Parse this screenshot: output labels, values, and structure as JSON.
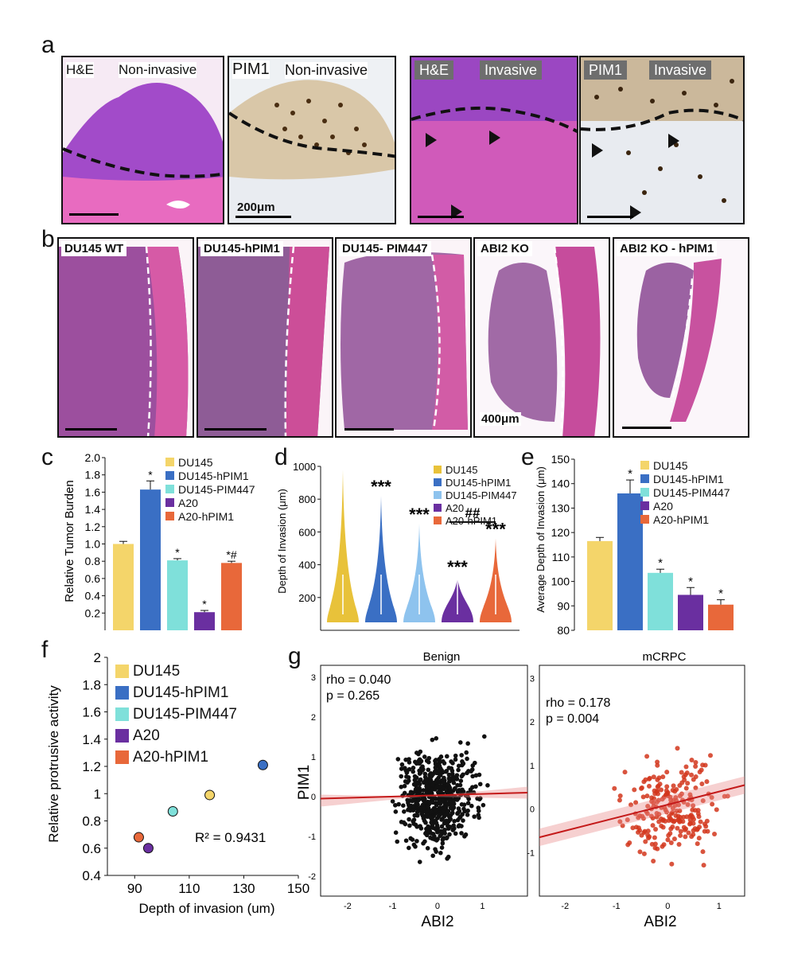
{
  "panels": {
    "a": {
      "letter": "a",
      "images": [
        {
          "stain": "H&E",
          "state": "Non-invasive"
        },
        {
          "stain": "PIM1",
          "state": "Non-invasive",
          "scale": "200μm"
        },
        {
          "stain": "H&E",
          "state": "Invasive"
        },
        {
          "stain": "PIM1",
          "state": "Invasive"
        }
      ]
    },
    "b": {
      "letter": "b",
      "images": [
        {
          "label": "DU145 WT"
        },
        {
          "label": "DU145-hPIM1"
        },
        {
          "label": "DU145- PIM447"
        },
        {
          "label": "ABI2 KO",
          "scale": "400μm"
        },
        {
          "label": "ABI2 KO - hPIM1"
        }
      ]
    },
    "c": {
      "letter": "c"
    },
    "d": {
      "letter": "d"
    },
    "e": {
      "letter": "e"
    },
    "f": {
      "letter": "f"
    },
    "g": {
      "letter": "g"
    }
  },
  "legend": {
    "items": [
      {
        "name": "DU145",
        "color": "#f4d56a"
      },
      {
        "name": "DU145-hPIM1",
        "color": "#3a6fc4"
      },
      {
        "name": "DU145-PIM447",
        "color": "#7fe0da"
      },
      {
        "name": "A20",
        "color": "#6a2fa0"
      },
      {
        "name": "A20-hPIM1",
        "color": "#e8683a"
      }
    ],
    "items_d": [
      {
        "name": "DU145",
        "color": "#e8c23a"
      },
      {
        "name": "DU145-hPIM1",
        "color": "#3a6fc4"
      },
      {
        "name": "DU145-PIM447",
        "color": "#8ec3ee"
      },
      {
        "name": "A20",
        "color": "#6a2fa0"
      },
      {
        "name": "A20-hPIM1",
        "color": "#e8683a"
      }
    ]
  },
  "chart_data": [
    {
      "id": "c",
      "type": "bar",
      "ylabel": "Relative Tumor Burden",
      "ylim": [
        0.0,
        2.0
      ],
      "yticks": [
        "0.2",
        "0.4",
        "0.6",
        "0.8",
        "1.0",
        "1.2",
        "1.4",
        "1.6",
        "1.8",
        "2.0"
      ],
      "categories": [
        "DU145",
        "DU145-hPIM1",
        "DU145-PIM447",
        "A20",
        "A20-hPIM1"
      ],
      "values": [
        1.0,
        1.63,
        0.81,
        0.21,
        0.78
      ],
      "errors": [
        0.03,
        0.1,
        0.02,
        0.02,
        0.02
      ],
      "annotations": [
        "",
        "*",
        "*",
        "*",
        "*#"
      ]
    },
    {
      "id": "d",
      "type": "violin",
      "ylabel": "Depth of Invasion (μm)",
      "ylim": [
        0,
        1000
      ],
      "yticks": [
        "200",
        "400",
        "600",
        "800",
        "1000"
      ],
      "categories": [
        "DU145",
        "DU145-hPIM1",
        "DU145-PIM447",
        "A20",
        "A20-hPIM1"
      ],
      "max": [
        980,
        820,
        650,
        330,
        560
      ],
      "annotations": [
        "",
        "***",
        "***",
        "***",
        "***"
      ],
      "bracket_label": "##"
    },
    {
      "id": "e",
      "type": "bar",
      "ylabel": "Average Depth of Invasion (μm)",
      "ylim": [
        80,
        150
      ],
      "yticks": [
        "80",
        "90",
        "100",
        "110",
        "120",
        "130",
        "140",
        "150"
      ],
      "categories": [
        "DU145",
        "DU145-hPIM1",
        "DU145-PIM447",
        "A20",
        "A20-hPIM1"
      ],
      "values": [
        116.5,
        136,
        103.5,
        94.5,
        90.5
      ],
      "errors": [
        1.5,
        5.5,
        1.5,
        3,
        2
      ],
      "annotations": [
        "",
        "*",
        "*",
        "*",
        "*"
      ]
    },
    {
      "id": "f",
      "type": "scatter",
      "xlabel": "Depth of invasion (um)",
      "ylabel": "Relative protrusive activity",
      "xlim": [
        80,
        150
      ],
      "ylim": [
        0.4,
        2.0
      ],
      "xticks": [
        "90",
        "110",
        "130",
        "150"
      ],
      "yticks": [
        "0.4",
        "0.6",
        "0.8",
        "1",
        "1.2",
        "1.4",
        "1.6",
        "1.8",
        "2"
      ],
      "points": [
        {
          "name": "DU145",
          "x": 117.5,
          "y": 0.99
        },
        {
          "name": "DU145-hPIM1",
          "x": 137,
          "y": 1.21
        },
        {
          "name": "DU145-PIM447",
          "x": 104,
          "y": 0.87
        },
        {
          "name": "A20",
          "x": 95,
          "y": 0.6
        },
        {
          "name": "A20-hPIM1",
          "x": 91.5,
          "y": 0.68
        }
      ],
      "annotation": "R² = 0.9431"
    },
    {
      "id": "g1",
      "type": "scatter",
      "title": "Benign",
      "xlabel": "ABI2",
      "ylabel": "PIM1",
      "stats": [
        "rho = 0.040",
        "p = 0.265"
      ],
      "xticks": [
        "-2",
        "-1",
        "0",
        "1"
      ],
      "yticks": [
        "3",
        "2",
        "1",
        "0",
        "-1",
        "-2"
      ]
    },
    {
      "id": "g2",
      "type": "scatter",
      "title": "mCRPC",
      "xlabel": "ABI2",
      "stats": [
        "rho = 0.178",
        "p = 0.004"
      ],
      "xticks": [
        "-2",
        "-1",
        "0",
        "1"
      ],
      "yticks": [
        "3",
        "2",
        "1",
        "0",
        "-1"
      ]
    }
  ]
}
